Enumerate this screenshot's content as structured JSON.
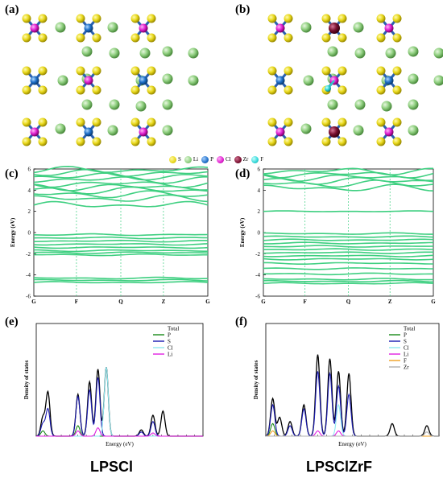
{
  "panels": {
    "a": "(a)",
    "b": "(b)",
    "c": "(c)",
    "d": "(d)",
    "e": "(e)",
    "f": "(f)"
  },
  "atom_legend": [
    {
      "label": "S",
      "color": "#e8d81a"
    },
    {
      "label": "Li",
      "color": "#8fcf7f"
    },
    {
      "label": "P",
      "color": "#1e6fc8"
    },
    {
      "label": "Cl",
      "color": "#e020d0"
    },
    {
      "label": "Zr",
      "color": "#7a1030"
    },
    {
      "label": "F",
      "color": "#30d8d8"
    }
  ],
  "band_axes": {
    "ylabel": "Energy (eV)",
    "yticks": [
      "6",
      "4",
      "2",
      "0",
      "-2",
      "-4",
      "-6"
    ],
    "kpoints": [
      "G",
      "F",
      "Q",
      "Z",
      "G"
    ]
  },
  "dos_axes": {
    "ylabel": "Density of states",
    "xlabel": "Energy (eV)"
  },
  "dos_legend_e": [
    "Total",
    "P",
    "S",
    "Cl",
    "Li"
  ],
  "dos_legend_f": [
    "Total",
    "P",
    "S",
    "Cl",
    "Li",
    "F",
    "Zr"
  ],
  "names": {
    "left": "LPSCl",
    "right": "LPSClZrF"
  },
  "colors": {
    "band": "#3ecf80",
    "total": "#e02020",
    "P": "#1a8a1a",
    "S": "#1a1ab0",
    "Cl": "#8ee8f0",
    "Li": "#e020e0",
    "F": "#f0a020",
    "Zr": "#b0b0b0"
  },
  "chart_data": [
    {
      "type": "line",
      "panel": "c",
      "ylabel": "Energy (eV)",
      "ylim": [
        -6,
        6
      ],
      "kpoints": [
        "G",
        "F",
        "Q",
        "Z",
        "G"
      ],
      "valence_band_energies": [
        -4.7,
        -4.5,
        -4.3,
        -2.1,
        -1.9,
        -1.7,
        -1.4,
        -1.1,
        -0.8,
        -0.5,
        -0.2
      ],
      "conduction_band_energies": [
        2.6,
        3.2,
        3.6,
        4.0,
        4.3,
        4.6,
        5.0,
        5.3,
        5.6,
        5.9
      ]
    },
    {
      "type": "line",
      "panel": "d",
      "ylabel": "Energy (eV)",
      "ylim": [
        -6,
        6
      ],
      "kpoints": [
        "G",
        "F",
        "Q",
        "Z",
        "G"
      ],
      "valence_band_energies": [
        -4.8,
        -4.6,
        -4.4,
        -3.9,
        -3.4,
        -2.9,
        -2.5,
        -2.2,
        -1.9,
        -1.6,
        -1.3,
        -1.0,
        -0.7,
        -0.4,
        -0.1
      ],
      "conduction_band_energies": [
        2.0,
        4.2,
        4.6,
        4.9,
        5.2,
        5.5,
        5.8
      ]
    },
    {
      "type": "line",
      "panel": "e",
      "ylabel": "Density of states",
      "xlabel": "Energy (eV)",
      "series": [
        {
          "name": "Total",
          "peaks": [
            [
              0.04,
              0.18
            ],
            [
              0.07,
              0.42
            ],
            [
              0.25,
              0.4
            ],
            [
              0.32,
              0.52
            ],
            [
              0.37,
              0.64
            ],
            [
              0.42,
              0.66
            ],
            [
              0.63,
              0.06
            ],
            [
              0.7,
              0.2
            ],
            [
              0.76,
              0.24
            ]
          ]
        },
        {
          "name": "P",
          "peaks": [
            [
              0.04,
              0.05
            ],
            [
              0.25,
              0.1
            ]
          ]
        },
        {
          "name": "S",
          "peaks": [
            [
              0.04,
              0.12
            ],
            [
              0.07,
              0.26
            ],
            [
              0.25,
              0.38
            ],
            [
              0.32,
              0.44
            ],
            [
              0.37,
              0.56
            ],
            [
              0.63,
              0.04
            ],
            [
              0.7,
              0.14
            ]
          ]
        },
        {
          "name": "Cl",
          "peaks": [
            [
              0.42,
              0.66
            ]
          ]
        },
        {
          "name": "Li",
          "peaks": [
            [
              0.25,
              0.05
            ],
            [
              0.37,
              0.08
            ],
            [
              0.7,
              0.03
            ]
          ]
        }
      ]
    },
    {
      "type": "line",
      "panel": "f",
      "ylabel": "Density of states",
      "xlabel": "Energy (eV)",
      "series": [
        {
          "name": "Total",
          "peaks": [
            [
              0.04,
              0.36
            ],
            [
              0.08,
              0.18
            ],
            [
              0.14,
              0.14
            ],
            [
              0.22,
              0.3
            ],
            [
              0.3,
              0.78
            ],
            [
              0.37,
              0.74
            ],
            [
              0.42,
              0.62
            ],
            [
              0.48,
              0.6
            ],
            [
              0.73,
              0.12
            ],
            [
              0.93,
              0.1
            ]
          ]
        },
        {
          "name": "P",
          "peaks": [
            [
              0.04,
              0.12
            ]
          ]
        },
        {
          "name": "S",
          "peaks": [
            [
              0.04,
              0.3
            ],
            [
              0.14,
              0.1
            ],
            [
              0.22,
              0.26
            ],
            [
              0.3,
              0.62
            ],
            [
              0.37,
              0.6
            ],
            [
              0.42,
              0.48
            ],
            [
              0.48,
              0.4
            ]
          ]
        },
        {
          "name": "Cl",
          "peaks": [
            [
              0.42,
              0.3
            ]
          ]
        },
        {
          "name": "Li",
          "peaks": [
            [
              0.3,
              0.05
            ],
            [
              0.42,
              0.05
            ]
          ]
        },
        {
          "name": "F",
          "peaks": [
            [
              0.04,
              0.05
            ]
          ]
        },
        {
          "name": "Zr",
          "peaks": [
            [
              0.93,
              0.04
            ]
          ]
        }
      ]
    }
  ]
}
